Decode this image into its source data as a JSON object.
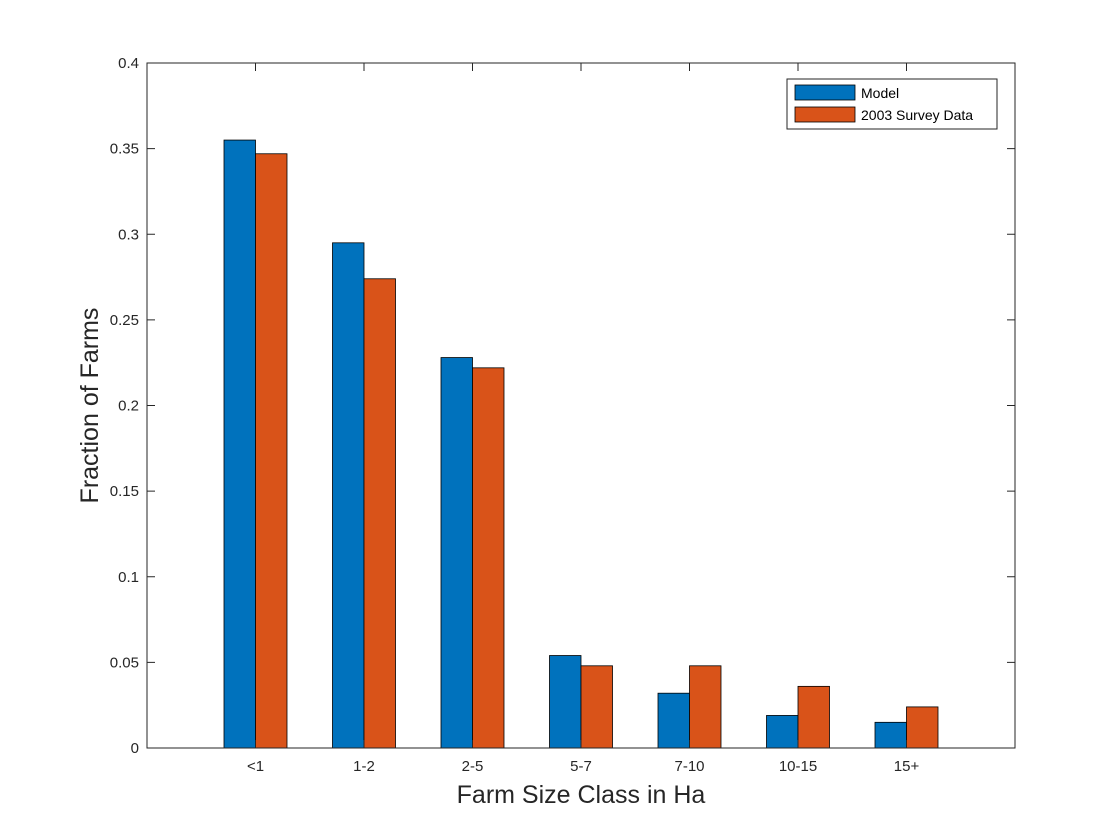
{
  "chart_data": {
    "type": "bar",
    "title": "",
    "xlabel": "Farm Size Class in Ha",
    "ylabel": "Fraction of Farms",
    "categories": [
      "<1",
      "1-2",
      "2-5",
      "5-7",
      "7-10",
      "10-15",
      "15+"
    ],
    "series": [
      {
        "name": "Model",
        "color": "#0072bd",
        "values": [
          0.355,
          0.295,
          0.228,
          0.054,
          0.032,
          0.019,
          0.015
        ]
      },
      {
        "name": "2003 Survey Data",
        "color": "#d95319",
        "values": [
          0.347,
          0.274,
          0.222,
          0.048,
          0.048,
          0.036,
          0.024
        ]
      }
    ],
    "ylim": [
      0,
      0.4
    ],
    "yticks": [
      "0",
      "0.05",
      "0.1",
      "0.15",
      "0.2",
      "0.25",
      "0.3",
      "0.35",
      "0.4"
    ],
    "grid": false,
    "legend_position": "top-right"
  }
}
